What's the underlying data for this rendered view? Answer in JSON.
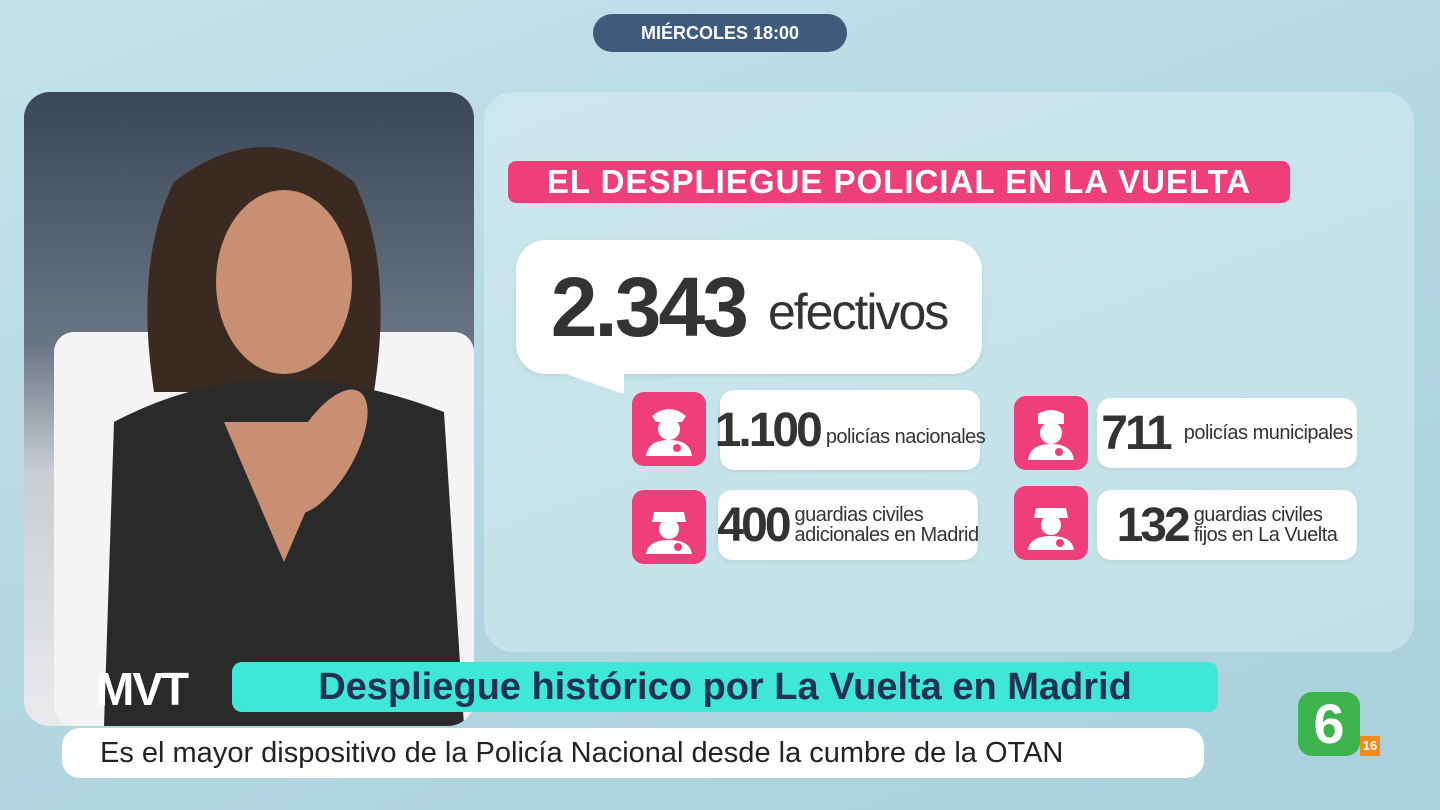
{
  "schedule": "MIÉRCOLES 18:00",
  "graphic": {
    "title": "EL DESPLIEGUE POLICIAL EN LA VUELTA",
    "total": {
      "number": "2.343",
      "label": "efectivos"
    },
    "items": [
      {
        "number": "1.100",
        "label": [
          "policías nacionales"
        ]
      },
      {
        "number": "711",
        "label": [
          "policías municipales"
        ]
      },
      {
        "number": "400",
        "label": [
          "guardias civiles",
          "adicionales en Madrid"
        ]
      },
      {
        "number": "132",
        "label": [
          "guardias civiles",
          "fijos en La Vuelta"
        ]
      }
    ]
  },
  "lower_third": {
    "program_logo": "MVT",
    "headline": "Despliegue histórico por La Vuelta en Madrid",
    "subtitle": "Es el mayor dispositivo de la Policía Nacional desde la cumbre de la OTAN"
  },
  "channel": {
    "logo": "6",
    "rating": "16"
  }
}
